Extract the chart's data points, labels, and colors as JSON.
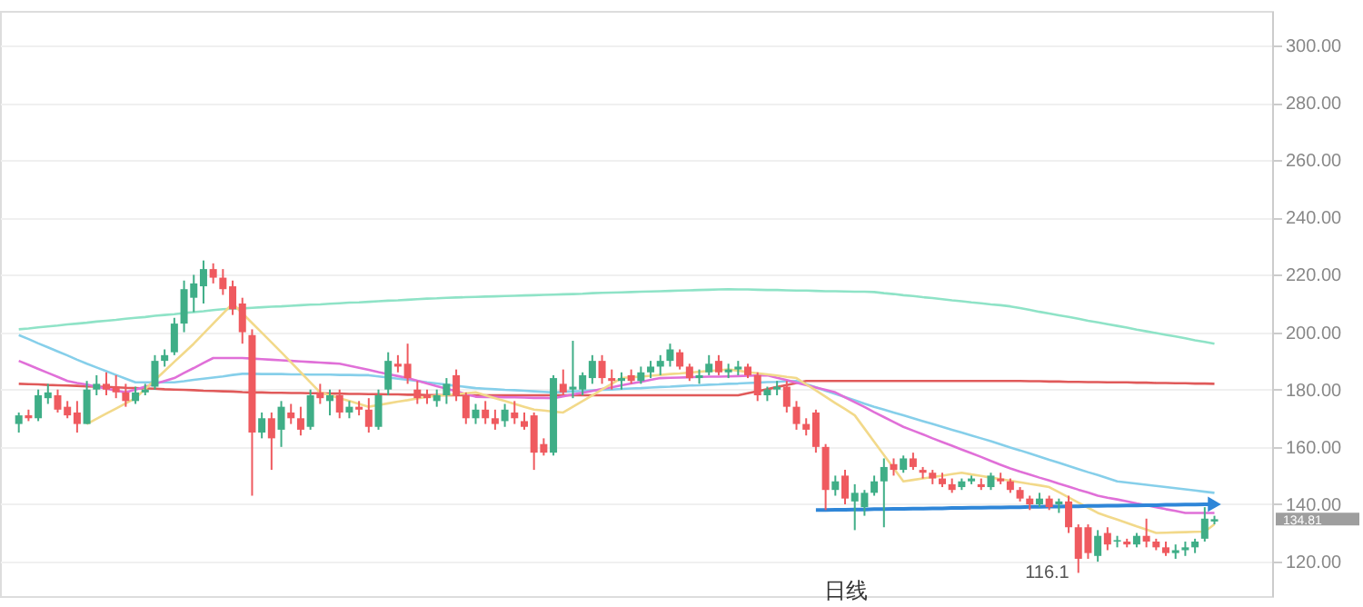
{
  "chart_data": {
    "type": "candlestick",
    "categories": [
      null,
      null,
      null,
      null,
      null,
      null,
      null,
      null,
      null,
      null,
      null,
      null,
      null,
      null,
      null,
      null,
      null,
      null,
      null,
      null,
      null,
      null,
      null,
      null,
      null,
      null,
      null,
      null,
      null,
      null,
      null,
      null,
      null,
      null,
      null,
      null,
      null,
      null,
      null,
      null,
      null,
      null,
      null,
      null,
      null,
      null,
      null,
      null,
      null,
      null,
      null,
      null,
      null,
      null,
      null,
      null,
      null,
      null,
      null,
      null,
      null,
      null,
      null,
      null,
      null,
      null,
      null,
      null,
      null,
      null,
      null,
      null,
      null,
      null,
      null,
      null,
      null,
      null,
      null,
      null,
      null,
      null,
      null,
      null,
      null,
      null,
      null,
      null,
      null,
      null,
      null,
      null,
      null,
      null,
      null,
      null,
      null,
      null,
      null,
      null,
      null,
      null,
      null,
      null,
      null,
      null,
      null,
      null,
      null,
      null,
      null,
      null,
      null,
      null,
      null,
      null,
      null,
      null,
      null,
      null,
      null,
      null,
      null,
      null
    ],
    "ohlc": [
      [
        168,
        172,
        165,
        171
      ],
      [
        171,
        173,
        169,
        170
      ],
      [
        170,
        180,
        169,
        178
      ],
      [
        177,
        182,
        175,
        179
      ],
      [
        178,
        180,
        172,
        173
      ],
      [
        174,
        176,
        170,
        171
      ],
      [
        172,
        176,
        165,
        168
      ],
      [
        168,
        183,
        168,
        180
      ],
      [
        180,
        185,
        178,
        182
      ],
      [
        182,
        186,
        178,
        180
      ],
      [
        181,
        185,
        177,
        179
      ],
      [
        179,
        182,
        174,
        176
      ],
      [
        176,
        181,
        175,
        179
      ],
      [
        179,
        182,
        178,
        180
      ],
      [
        181,
        192,
        180,
        190
      ],
      [
        190,
        194,
        188,
        192
      ],
      [
        193,
        205,
        192,
        203
      ],
      [
        203,
        218,
        200,
        215
      ],
      [
        212,
        220,
        207,
        217
      ],
      [
        216,
        225,
        210,
        222
      ],
      [
        222,
        224,
        217,
        219
      ],
      [
        219,
        222,
        213,
        215
      ],
      [
        216,
        218,
        206,
        208
      ],
      [
        210,
        212,
        196,
        200
      ],
      [
        199,
        201,
        143,
        165
      ],
      [
        165,
        172,
        163,
        170
      ],
      [
        170,
        172,
        152,
        163
      ],
      [
        166,
        176,
        160,
        174
      ],
      [
        172,
        175,
        168,
        170
      ],
      [
        170,
        174,
        164,
        166
      ],
      [
        167,
        180,
        166,
        178
      ],
      [
        179,
        182,
        175,
        177
      ],
      [
        176,
        180,
        171,
        178
      ],
      [
        178,
        180,
        170,
        172
      ],
      [
        172,
        176,
        170,
        174
      ],
      [
        174,
        176,
        171,
        173
      ],
      [
        173,
        177,
        165,
        167
      ],
      [
        167,
        180,
        166,
        178
      ],
      [
        180,
        193,
        178,
        190
      ],
      [
        189,
        192,
        186,
        188
      ],
      [
        189,
        196,
        182,
        184
      ],
      [
        180,
        183,
        175,
        177
      ],
      [
        178,
        180,
        175,
        177
      ],
      [
        176,
        180,
        174,
        178
      ],
      [
        178,
        184,
        175,
        182
      ],
      [
        185,
        187,
        176,
        178
      ],
      [
        178,
        179,
        168,
        170
      ],
      [
        170,
        175,
        168,
        173
      ],
      [
        173,
        176,
        168,
        170
      ],
      [
        170,
        173,
        166,
        168
      ],
      [
        169,
        175,
        167,
        173
      ],
      [
        172,
        176,
        168,
        170
      ],
      [
        169,
        172,
        166,
        167
      ],
      [
        171,
        172,
        152,
        158
      ],
      [
        161,
        163,
        157,
        158
      ],
      [
        158,
        185,
        157,
        184
      ],
      [
        182,
        187,
        178,
        179
      ],
      [
        180,
        197,
        177,
        181
      ],
      [
        180,
        186,
        178,
        185
      ],
      [
        184,
        192,
        182,
        190
      ],
      [
        190,
        192,
        182,
        184
      ],
      [
        184,
        187,
        180,
        183
      ],
      [
        183,
        186,
        180,
        184
      ],
      [
        185,
        187,
        182,
        183
      ],
      [
        183,
        188,
        182,
        186
      ],
      [
        186,
        190,
        184,
        188
      ],
      [
        188,
        192,
        185,
        190
      ],
      [
        190,
        196,
        188,
        194
      ],
      [
        193,
        194,
        187,
        188
      ],
      [
        188,
        189,
        183,
        184
      ],
      [
        184,
        187,
        182,
        185
      ],
      [
        186,
        192,
        185,
        189
      ],
      [
        190,
        192,
        185,
        186
      ],
      [
        186,
        189,
        184,
        187
      ],
      [
        187,
        190,
        185,
        188
      ],
      [
        188,
        189,
        184,
        185
      ],
      [
        185,
        186,
        176,
        178
      ],
      [
        178,
        181,
        176,
        180
      ],
      [
        180,
        183,
        178,
        181
      ],
      [
        181,
        183,
        172,
        174
      ],
      [
        174,
        176,
        166,
        168
      ],
      [
        168,
        170,
        164,
        166
      ],
      [
        172,
        173,
        158,
        160
      ],
      [
        160,
        161,
        138,
        145
      ],
      [
        145,
        150,
        143,
        148
      ],
      [
        150,
        152,
        140,
        142
      ],
      [
        141,
        147,
        131,
        144
      ],
      [
        139,
        145,
        136,
        144
      ],
      [
        144,
        150,
        143,
        148
      ],
      [
        148,
        156,
        132,
        153
      ],
      [
        154,
        156,
        150,
        152
      ],
      [
        152,
        157,
        151,
        156
      ],
      [
        156,
        158,
        152,
        153
      ],
      [
        152,
        153,
        149,
        151
      ],
      [
        151,
        152,
        147,
        149
      ],
      [
        149,
        151,
        146,
        147
      ],
      [
        147,
        149,
        144,
        145
      ],
      [
        146,
        149,
        145,
        148
      ],
      [
        148,
        150,
        147,
        149
      ],
      [
        147,
        149,
        145,
        146
      ],
      [
        146,
        151,
        145,
        150
      ],
      [
        149,
        151,
        147,
        148
      ],
      [
        148,
        149,
        144,
        145
      ],
      [
        145,
        146,
        141,
        142
      ],
      [
        142,
        143,
        138,
        140
      ],
      [
        140,
        144,
        139,
        142
      ],
      [
        142,
        143,
        138,
        139
      ],
      [
        140,
        142,
        137,
        141
      ],
      [
        141,
        143,
        130,
        132
      ],
      [
        132,
        133,
        116.1,
        121
      ],
      [
        132,
        133,
        121,
        123
      ],
      [
        122,
        131,
        120,
        129
      ],
      [
        130,
        132,
        124,
        126
      ],
      [
        127,
        129,
        125,
        127.5
      ],
      [
        127,
        128,
        125,
        126
      ],
      [
        126,
        130,
        125,
        129
      ],
      [
        129,
        135,
        125,
        127
      ],
      [
        127,
        128,
        124,
        125
      ],
      [
        125,
        127,
        122,
        123
      ],
      [
        123,
        126,
        121,
        124
      ],
      [
        124,
        127,
        122,
        125
      ],
      [
        125,
        128,
        123,
        127
      ],
      [
        128,
        139,
        127,
        135
      ],
      [
        134,
        136,
        133,
        134.81
      ]
    ],
    "colors": [
      "#3fae87",
      "#ef5a5f",
      "#3fae87",
      "#3fae87",
      "#ef5a5f",
      "#ef5a5f",
      "#ef5a5f",
      "#3fae87",
      "#3fae87",
      "#ef5a5f",
      "#ef5a5f",
      "#ef5a5f",
      "#3fae87",
      "#3fae87",
      "#3fae87",
      "#3fae87",
      "#3fae87",
      "#3fae87",
      "#3fae87",
      "#3fae87",
      "#ef5a5f",
      "#ef5a5f",
      "#ef5a5f",
      "#ef5a5f",
      "#ef5a5f",
      "#3fae87",
      "#ef5a5f",
      "#3fae87",
      "#ef5a5f",
      "#ef5a5f",
      "#3fae87",
      "#ef5a5f",
      "#3fae87",
      "#ef5a5f",
      "#3fae87",
      "#ef5a5f",
      "#ef5a5f",
      "#3fae87",
      "#3fae87",
      "#ef5a5f",
      "#ef5a5f",
      "#ef5a5f",
      "#ef5a5f",
      "#3fae87",
      "#3fae87",
      "#ef5a5f",
      "#ef5a5f",
      "#3fae87",
      "#ef5a5f",
      "#ef5a5f",
      "#3fae87",
      "#ef5a5f",
      "#ef5a5f",
      "#ef5a5f",
      "#ef5a5f",
      "#3fae87",
      "#ef5a5f",
      "#3fae87",
      "#3fae87",
      "#3fae87",
      "#ef5a5f",
      "#ef5a5f",
      "#3fae87",
      "#ef5a5f",
      "#3fae87",
      "#3fae87",
      "#3fae87",
      "#3fae87",
      "#ef5a5f",
      "#ef5a5f",
      "#3fae87",
      "#3fae87",
      "#ef5a5f",
      "#3fae87",
      "#3fae87",
      "#ef5a5f",
      "#ef5a5f",
      "#3fae87",
      "#3fae87",
      "#ef5a5f",
      "#ef5a5f",
      "#ef5a5f",
      "#ef5a5f",
      "#ef5a5f",
      "#3fae87",
      "#ef5a5f",
      "#3fae87",
      "#3fae87",
      "#3fae87",
      "#3fae87",
      "#ef5a5f",
      "#3fae87",
      "#ef5a5f",
      "#ef5a5f",
      "#ef5a5f",
      "#ef5a5f",
      "#ef5a5f",
      "#3fae87",
      "#3fae87",
      "#ef5a5f",
      "#3fae87",
      "#ef5a5f",
      "#ef5a5f",
      "#ef5a5f",
      "#ef5a5f",
      "#3fae87",
      "#ef5a5f",
      "#3fae87",
      "#ef5a5f",
      "#ef5a5f",
      "#ef5a5f",
      "#3fae87",
      "#ef5a5f",
      "#3fae87",
      "#ef5a5f",
      "#3fae87",
      "#ef5a5f",
      "#ef5a5f",
      "#ef5a5f",
      "#3fae87",
      "#3fae87",
      "#3fae87",
      "#3fae87",
      "#3fae87"
    ],
    "series": [
      {
        "type": "line",
        "color": "#8fe3c7",
        "values": [
          201,
          201.3,
          201.7,
          202,
          202.3,
          202.7,
          203,
          203.3,
          203.7,
          204,
          204.3,
          204.7,
          205,
          205.3,
          205.7,
          206,
          206.3,
          206.7,
          207,
          207.3,
          207.7,
          208,
          208.2,
          208.3,
          208.5,
          208.7,
          208.9,
          209,
          209.2,
          209.4,
          209.6,
          209.7,
          209.9,
          210.1,
          210.3,
          210.4,
          210.6,
          210.8,
          211,
          211.1,
          211.3,
          211.5,
          211.7,
          211.8,
          212,
          212.1,
          212.2,
          212.3,
          212.4,
          212.5,
          212.6,
          212.7,
          212.8,
          212.9,
          213,
          213.1,
          213.2,
          213.3,
          213.4,
          213.6,
          213.7,
          213.8,
          213.9,
          214,
          214.1,
          214.2,
          214.3,
          214.4,
          214.5,
          214.6,
          214.7,
          214.8,
          214.9,
          215,
          214.9,
          214.9,
          214.8,
          214.7,
          214.7,
          214.6,
          214.5,
          214.5,
          214.4,
          214.3,
          214.3,
          214.2,
          214.1,
          214.1,
          214,
          213.6,
          213.3,
          212.9,
          212.6,
          212.2,
          211.9,
          211.5,
          211.1,
          210.8,
          210.4,
          210.1,
          209.7,
          209.4,
          209,
          208.4,
          207.8,
          207.1,
          206.5,
          205.9,
          205.3,
          204.7,
          204,
          203.4,
          202.8,
          202.2,
          201.6,
          200.9,
          200.3,
          199.7,
          199.1,
          198.5,
          197.9,
          197.2,
          196.6,
          196
        ]
      },
      {
        "type": "line",
        "color": "#e05a5a",
        "values": [
          182,
          181.9,
          181.8,
          181.6,
          181.5,
          181.4,
          181.3,
          181.1,
          181,
          180.9,
          180.8,
          180.6,
          180.5,
          180.4,
          180.3,
          180.1,
          180,
          179.9,
          179.8,
          179.6,
          179.5,
          179.4,
          179.3,
          179.1,
          179,
          179,
          178.9,
          178.9,
          178.8,
          178.8,
          178.7,
          178.7,
          178.6,
          178.6,
          178.5,
          178.5,
          178.4,
          178.4,
          178.3,
          178.3,
          178.2,
          178.2,
          178.1,
          178.1,
          178,
          178,
          178,
          178,
          178,
          178,
          178,
          178,
          178,
          178,
          178,
          178,
          178,
          178,
          178,
          178,
          178,
          178,
          178,
          178,
          178,
          178,
          178,
          178,
          178,
          178,
          178,
          178,
          178,
          178,
          178,
          178.7,
          179.4,
          180.1,
          180.9,
          181.6,
          182.3,
          183,
          183,
          183,
          183,
          183,
          183,
          183,
          183,
          183,
          183,
          183,
          183,
          183,
          183,
          183,
          183,
          183,
          183,
          183,
          183,
          183,
          183,
          183,
          182.9,
          182.9,
          182.8,
          182.8,
          182.7,
          182.7,
          182.6,
          182.6,
          182.5,
          182.5,
          182.5,
          182.4,
          182.4,
          182.3,
          182.3,
          182.2,
          182.2,
          182.1,
          182.1,
          182
        ]
      },
      {
        "type": "line",
        "color": "#86cfea",
        "values": [
          199,
          197.6,
          196.1,
          194.7,
          193.3,
          191.9,
          190.4,
          189,
          187.7,
          186.4,
          185.1,
          183.8,
          182.5,
          182.5,
          182.5,
          182.5,
          182.5,
          182.9,
          183.4,
          183.8,
          184.2,
          184.6,
          185.1,
          185.5,
          185.5,
          185.4,
          185.4,
          185.4,
          185.3,
          185.3,
          185.2,
          185.2,
          185.2,
          185.1,
          185.1,
          185,
          185,
          184.6,
          184.2,
          183.8,
          183.4,
          183,
          182.5,
          182.1,
          181.7,
          181.3,
          180.9,
          180.5,
          180.3,
          180.1,
          179.9,
          179.8,
          179.6,
          179.4,
          179.2,
          179,
          179.2,
          179.4,
          179.5,
          179.7,
          179.9,
          180,
          180.2,
          180.4,
          180.5,
          180.7,
          180.9,
          181,
          181.2,
          181.4,
          181.5,
          181.7,
          181.8,
          182,
          182.1,
          182.3,
          182.4,
          182.6,
          182.7,
          182.9,
          183,
          181.9,
          180.8,
          179.6,
          178.5,
          177.4,
          176.3,
          175.1,
          174,
          173,
          172,
          171,
          170,
          169,
          168,
          167,
          166,
          165,
          164,
          163,
          162,
          160.9,
          159.8,
          158.8,
          157.7,
          156.6,
          155.5,
          154.5,
          153.4,
          152.3,
          151.2,
          150.2,
          149.1,
          148,
          147.6,
          147.2,
          146.8,
          146.4,
          146,
          145.6,
          145.2,
          144.8,
          144.4,
          144
        ]
      },
      {
        "type": "line",
        "color": "#e070d8",
        "values": [
          190,
          188.6,
          187.2,
          185.8,
          184.4,
          183,
          182.3,
          181.7,
          181,
          180.3,
          179.7,
          179,
          180,
          181,
          182,
          183,
          184,
          185.8,
          187.5,
          189.3,
          191,
          191,
          191,
          191,
          190.8,
          190.6,
          190.4,
          190.2,
          190,
          189.8,
          189.6,
          189.4,
          189.2,
          189,
          188.3,
          187.6,
          186.9,
          186.1,
          185.4,
          184.7,
          184,
          183.1,
          182.1,
          181.2,
          180.3,
          179.4,
          178.4,
          177.5,
          177.4,
          177.4,
          177.3,
          177.3,
          177.2,
          177.1,
          177.1,
          177,
          177.6,
          178.3,
          178.9,
          179.5,
          180.2,
          180.8,
          181.5,
          182.1,
          182.7,
          183.4,
          184,
          184.1,
          184.2,
          184.3,
          184.4,
          184.5,
          184.5,
          184.6,
          184.7,
          184.8,
          184.9,
          185,
          184.1,
          183.3,
          182.4,
          181.6,
          180.7,
          179.9,
          179,
          177.3,
          175.6,
          173.9,
          172.1,
          170.4,
          168.7,
          167,
          165.7,
          164.4,
          163,
          161.7,
          160.4,
          159.1,
          157.8,
          156.5,
          155.1,
          153.8,
          152.5,
          151.4,
          150.4,
          149.3,
          148.3,
          147.2,
          146.2,
          145.1,
          144.1,
          143,
          142.3,
          141.7,
          141,
          140.3,
          139.7,
          139,
          138.3,
          137.7,
          137,
          137,
          137,
          137
        ]
      },
      {
        "type": "line",
        "color": "#f2d98a",
        "values": [
          null,
          null,
          null,
          null,
          null,
          null,
          null,
          168,
          169.8,
          171.6,
          173.4,
          175.2,
          177,
          180.2,
          183.3,
          186.5,
          189.7,
          192.8,
          196,
          199.5,
          203,
          206.5,
          210,
          206.6,
          203.2,
          199.8,
          196.4,
          193,
          189.5,
          186,
          182.5,
          179,
          178,
          177,
          176,
          175,
          174,
          174.6,
          175.2,
          175.8,
          176.3,
          176.9,
          177.5,
          177.8,
          178.1,
          178.4,
          178.7,
          179,
          178,
          177,
          176,
          175,
          174,
          173,
          172.7,
          172.3,
          172,
          174,
          176,
          178,
          180,
          182,
          184,
          184.3,
          184.5,
          184.8,
          185.1,
          185.4,
          185.6,
          185.9,
          186.2,
          186.5,
          186.7,
          187,
          186.6,
          186.1,
          185.7,
          185.3,
          184.9,
          184.4,
          184,
          181.8,
          179.7,
          177.5,
          175.3,
          173.2,
          171,
          166.4,
          161.8,
          157.2,
          152.6,
          148,
          148.5,
          149,
          149.5,
          150,
          150.5,
          151,
          150.4,
          149.9,
          149.3,
          148.8,
          148.2,
          147.7,
          147.1,
          146.6,
          146,
          144.2,
          142.4,
          140.6,
          138.8,
          137,
          135.8,
          134.7,
          133.5,
          132.3,
          131.2,
          130,
          130.1,
          130.2,
          130.3,
          130.4,
          130.5,
          133
        ]
      },
      {
        "type": "line",
        "color": "#2f86d8",
        "values": [
          null,
          null,
          null,
          null,
          null,
          null,
          null,
          null,
          null,
          null,
          null,
          null,
          null,
          null,
          null,
          null,
          null,
          null,
          null,
          null,
          null,
          null,
          null,
          null,
          null,
          null,
          null,
          null,
          null,
          null,
          null,
          null,
          null,
          null,
          null,
          null,
          null,
          null,
          null,
          null,
          null,
          null,
          null,
          null,
          null,
          null,
          null,
          null,
          null,
          null,
          null,
          null,
          null,
          null,
          null,
          null,
          null,
          null,
          null,
          null,
          null,
          null,
          null,
          null,
          null,
          null,
          null,
          null,
          null,
          null,
          null,
          null,
          null,
          null,
          null,
          null,
          null,
          null,
          null,
          null,
          null,
          null,
          138,
          138,
          138.1,
          138.1,
          138.2,
          138.2,
          138.3,
          138.3,
          138.4,
          138.4,
          138.5,
          138.5,
          138.6,
          138.6,
          138.7,
          138.7,
          138.8,
          138.8,
          138.9,
          138.9,
          139,
          139,
          139.1,
          139.1,
          139.2,
          139.2,
          139.3,
          139.3,
          139.4,
          139.4,
          139.5,
          139.5,
          139.6,
          139.6,
          139.7,
          139.7,
          139.8,
          139.8,
          139.9,
          139.9,
          140,
          140
        ]
      }
    ],
    "ylim": [
      108,
      312
    ],
    "yticks": [
      {
        "value": 120,
        "label": "120.00"
      },
      {
        "value": 140,
        "label": "140.00"
      },
      {
        "value": 160,
        "label": "160.00"
      },
      {
        "value": 180,
        "label": "180.00"
      },
      {
        "value": 200,
        "label": "200.00"
      },
      {
        "value": 220,
        "label": "220.00"
      },
      {
        "value": 240,
        "label": "240.00"
      },
      {
        "value": 260,
        "label": "260.00"
      },
      {
        "value": 280,
        "label": "280.00"
      },
      {
        "value": 300,
        "label": "300.00"
      }
    ],
    "grid": "y",
    "tick_labels": "y",
    "annotations": [
      "日线",
      "116.1",
      "134.81"
    ]
  }
}
